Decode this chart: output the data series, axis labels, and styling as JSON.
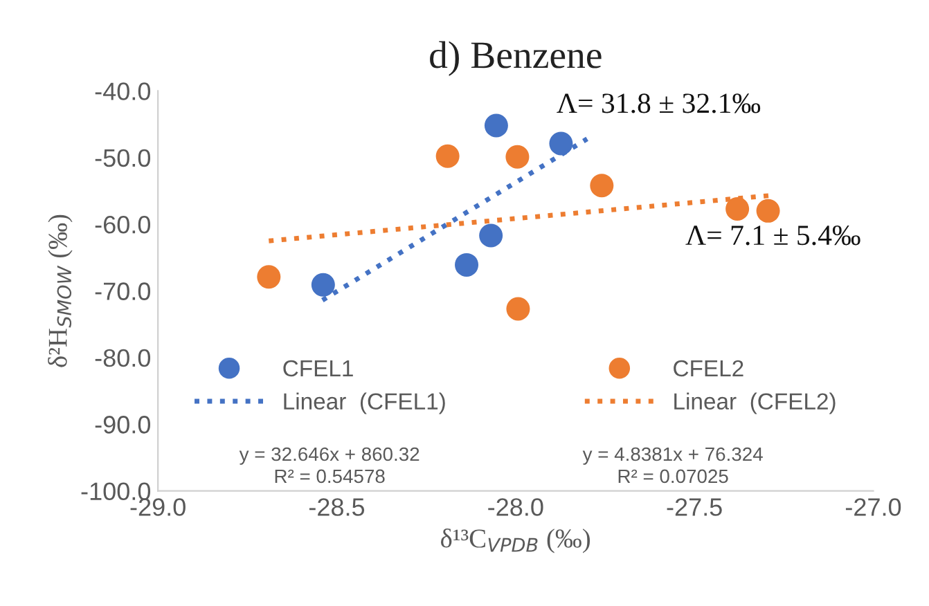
{
  "chart_data": {
    "type": "scatter",
    "title": "d) Benzene",
    "xlabel": "δ¹³C$_{VPDB}$ (‰)",
    "ylabel": "δ²H$_{SMOW}$ (‰)",
    "series": [
      {
        "name": "CFEL1",
        "marker": "circle",
        "color": "#4472c4",
        "x": [
          -28.054,
          -27.873,
          -28.069,
          -28.137,
          -28.538
        ],
        "values": [
          -45.2,
          -47.9,
          -61.7,
          -66.1,
          -69.1
        ]
      },
      {
        "name": "CFEL2",
        "marker": "circle",
        "color": "#ed7d31",
        "x": [
          -28.19,
          -27.995,
          -27.759,
          -27.38,
          -27.294,
          -28.69,
          -27.993
        ],
        "values": [
          -49.8,
          -49.9,
          -54.2,
          -57.7,
          -58.0,
          -67.9,
          -72.7
        ]
      },
      {
        "name": "Linear  (CFEL1)",
        "type": "line",
        "line_style": "dotted",
        "color": "#4472c4",
        "x": [
          -28.54,
          -27.8
        ],
        "values": [
          -71.4,
          -47.2
        ]
      },
      {
        "name": "Linear  (CFEL2)",
        "type": "line",
        "line_style": "dotted",
        "color": "#ed7d31",
        "x": [
          -28.69,
          -27.29
        ],
        "values": [
          -62.5,
          -55.7
        ]
      }
    ],
    "annotations": [
      "Λ= 31.8 ± 32.1‰",
      "Λ= 7.1 ± 5.4‰",
      "y = 32.646x + 860.32\nR² = 0.54578",
      "y = 4.8381x + 76.324\nR² = 0.07025"
    ],
    "xlim": [
      -29.0,
      -27.0
    ],
    "xticks": [
      {
        "value": -29.0,
        "label": "-29.0"
      },
      {
        "value": -28.5,
        "label": "-28.5"
      },
      {
        "value": -28.0,
        "label": "-28.0"
      },
      {
        "value": -27.5,
        "label": "-27.5"
      },
      {
        "value": -27.0,
        "label": "-27.0"
      }
    ],
    "ylim": [
      -100,
      -40
    ],
    "yticks": [
      {
        "value": -100,
        "label": "-100.0"
      },
      {
        "value": -90,
        "label": "-90.0"
      },
      {
        "value": -80,
        "label": "-80.0"
      },
      {
        "value": -70,
        "label": "-70.0"
      },
      {
        "value": -60,
        "label": "-60.0"
      },
      {
        "value": -50,
        "label": "-50.0"
      },
      {
        "value": -40,
        "label": "-40.0"
      }
    ],
    "grid": false,
    "legend": "bottom"
  }
}
